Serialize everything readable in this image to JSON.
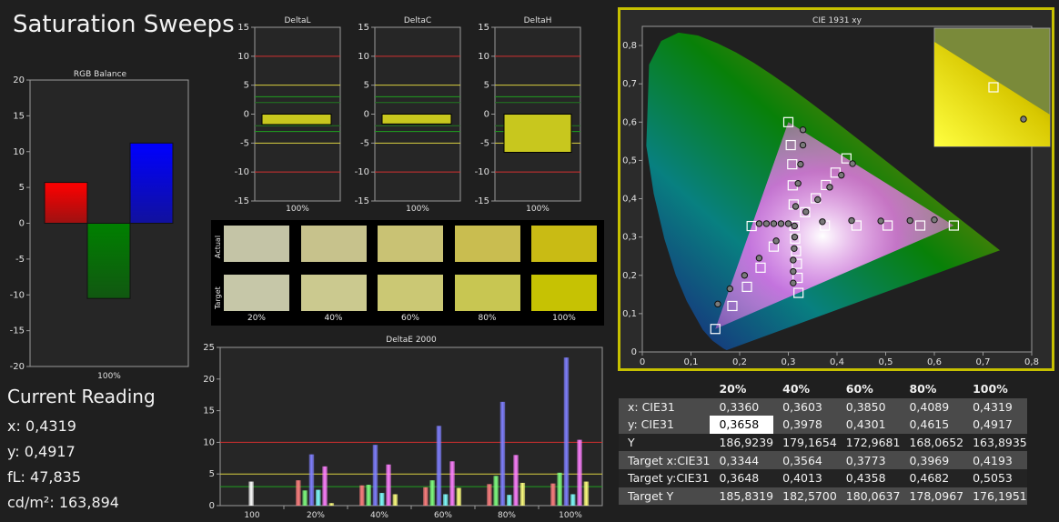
{
  "title": "Saturation Sweeps",
  "reading": {
    "heading": "Current Reading",
    "lines": [
      "x: 0,4319",
      "y: 0,4917",
      "fL: 47,835",
      "cd/m²: 163,894"
    ]
  },
  "swatches": {
    "actual_label": "Actual",
    "target_label": "Target",
    "labels": [
      "20%",
      "40%",
      "60%",
      "80%",
      "100%"
    ],
    "actual_colors": [
      "#c4c4a6",
      "#c7c28c",
      "#c9c274",
      "#c9bd50",
      "#c9bb14"
    ],
    "target_colors": [
      "#c6c7a8",
      "#cbc98f",
      "#cbc874",
      "#c8c652",
      "#c6c203"
    ]
  },
  "table": {
    "headers": [
      "",
      "20%",
      "40%",
      "60%",
      "80%",
      "100%"
    ],
    "rows": [
      {
        "label": "x: CIE31",
        "values": [
          "0,3360",
          "0,3603",
          "0,3850",
          "0,4089",
          "0,4319"
        ]
      },
      {
        "label": "y: CIE31",
        "values": [
          "0,3658",
          "0,3978",
          "0,4301",
          "0,4615",
          "0,4917"
        ]
      },
      {
        "label": "Y",
        "values": [
          "186,9239",
          "179,1654",
          "172,9681",
          "168,0652",
          "163,8935"
        ]
      },
      {
        "label": "Target x:CIE31",
        "values": [
          "0,3344",
          "0,3564",
          "0,3773",
          "0,3969",
          "0,4193"
        ]
      },
      {
        "label": "Target y:CIE31",
        "values": [
          "0,3648",
          "0,4013",
          "0,4358",
          "0,4682",
          "0,5053"
        ]
      },
      {
        "label": "Target Y",
        "values": [
          "185,8319",
          "182,5700",
          "180,0637",
          "178,0967",
          "176,1951"
        ]
      }
    ]
  },
  "chart_data": [
    {
      "type": "bar",
      "title": "RGB Balance",
      "categories": [
        "100%"
      ],
      "series": [
        {
          "color": "#ff0000",
          "values": [
            5.7
          ]
        },
        {
          "color": "#008000",
          "values": [
            -10.5
          ]
        },
        {
          "color": "#0000ff",
          "values": [
            11.2
          ]
        }
      ],
      "ylim": [
        -20,
        20
      ],
      "yticks": [
        "20",
        "15",
        "10",
        "5",
        "0",
        "-5",
        "-10",
        "-15",
        "-20"
      ],
      "grid": false
    },
    {
      "type": "bar",
      "title": "DeltaL",
      "categories": [
        "100%"
      ],
      "values": [
        -1.8
      ],
      "ylim": [
        -15,
        15
      ],
      "yticks": [
        "15",
        "10",
        "5",
        "0",
        "-5",
        "-10",
        "-15"
      ],
      "reference_lines": [
        10,
        -10,
        5,
        -5,
        3,
        -3,
        2,
        -2
      ]
    },
    {
      "type": "bar",
      "title": "DeltaC",
      "categories": [
        "100%"
      ],
      "values": [
        -1.7
      ],
      "ylim": [
        -15,
        15
      ],
      "yticks": [
        "15",
        "10",
        "5",
        "0",
        "-5",
        "-10",
        "-15"
      ],
      "reference_lines": [
        10,
        -10,
        5,
        -5,
        3,
        -3,
        2,
        -2
      ]
    },
    {
      "type": "bar",
      "title": "DeltaH",
      "categories": [
        "100%"
      ],
      "values": [
        -6.6
      ],
      "ylim": [
        -15,
        15
      ],
      "yticks": [
        "15",
        "10",
        "5",
        "0",
        "-5",
        "-10",
        "-15"
      ],
      "reference_lines": [
        10,
        -10,
        5,
        -5,
        3,
        -3,
        2,
        -2
      ]
    },
    {
      "type": "bar",
      "title": "DeltaE 2000",
      "categories": [
        "100",
        "20%",
        "40%",
        "60%",
        "80%",
        "100%"
      ],
      "series": [
        {
          "color": "#ff8080",
          "values": [
            0,
            4.0,
            3.2,
            2.9,
            3.4,
            3.5
          ]
        },
        {
          "color": "#80ff80",
          "values": [
            0,
            2.4,
            3.3,
            4.0,
            4.7,
            5.2
          ]
        },
        {
          "color": "#8080ff",
          "values": [
            0,
            8.1,
            9.6,
            12.6,
            16.4,
            23.4
          ]
        },
        {
          "color": "#80ffff",
          "values": [
            0,
            2.5,
            2.0,
            1.8,
            1.7,
            1.8
          ]
        },
        {
          "color": "#ff80ff",
          "values": [
            0,
            6.2,
            6.5,
            7.0,
            8.0,
            10.4
          ]
        },
        {
          "color": "#ffff80",
          "values": [
            0,
            0.4,
            1.8,
            2.8,
            3.6,
            3.8
          ]
        },
        {
          "color": "#ffffff",
          "values": [
            3.8,
            0,
            0,
            0,
            0,
            0
          ]
        }
      ],
      "ylim": [
        0,
        25
      ],
      "yticks": [
        "25",
        "20",
        "15",
        "10",
        "5",
        "0"
      ],
      "reference_lines": [
        10,
        5,
        3
      ]
    },
    {
      "type": "scatter",
      "title": "CIE 1931 xy",
      "xlim": [
        0,
        0.8
      ],
      "ylim": [
        0,
        0.85
      ],
      "xticks": [
        "0",
        "0,1",
        "0,2",
        "0,3",
        "0,4",
        "0,5",
        "0,6",
        "0,7",
        "0,8"
      ],
      "yticks": [
        "0",
        "0,1",
        "0,2",
        "0,3",
        "0,4",
        "0,5",
        "0,6",
        "0,7",
        "0,8"
      ],
      "gamut_triangle": [
        [
          0.64,
          0.33
        ],
        [
          0.3,
          0.6
        ],
        [
          0.15,
          0.06
        ]
      ],
      "series": [
        {
          "marker": "square",
          "points": [
            [
              0.3127,
              0.329
            ],
            [
              0.64,
              0.33
            ],
            [
              0.571,
              0.33
            ],
            [
              0.504,
              0.33
            ],
            [
              0.44,
              0.33
            ],
            [
              0.375,
              0.33
            ],
            [
              0.3,
              0.6
            ],
            [
              0.305,
              0.54
            ],
            [
              0.308,
              0.49
            ],
            [
              0.309,
              0.435
            ],
            [
              0.311,
              0.385
            ],
            [
              0.15,
              0.06
            ],
            [
              0.185,
              0.12
            ],
            [
              0.215,
              0.17
            ],
            [
              0.243,
              0.22
            ],
            [
              0.27,
              0.275
            ],
            [
              0.2246,
              0.3287
            ],
            [
              0.4193,
              0.5053
            ],
            [
              0.3969,
              0.4682
            ],
            [
              0.3773,
              0.4358
            ],
            [
              0.3564,
              0.4013
            ],
            [
              0.3344,
              0.3648
            ],
            [
              0.3209,
              0.1542
            ],
            [
              0.3191,
              0.1935
            ],
            [
              0.3177,
              0.2302
            ],
            [
              0.3158,
              0.2632
            ],
            [
              0.3141,
              0.2959
            ]
          ]
        },
        {
          "marker": "circle",
          "points": [
            [
              0.3127,
              0.329
            ],
            [
              0.6,
              0.345
            ],
            [
              0.55,
              0.343
            ],
            [
              0.49,
              0.342
            ],
            [
              0.43,
              0.343
            ],
            [
              0.37,
              0.34
            ],
            [
              0.33,
              0.58
            ],
            [
              0.33,
              0.54
            ],
            [
              0.325,
              0.49
            ],
            [
              0.32,
              0.44
            ],
            [
              0.315,
              0.38
            ],
            [
              0.155,
              0.125
            ],
            [
              0.18,
              0.165
            ],
            [
              0.21,
              0.2
            ],
            [
              0.24,
              0.245
            ],
            [
              0.275,
              0.29
            ],
            [
              0.24,
              0.335
            ],
            [
              0.255,
              0.335
            ],
            [
              0.27,
              0.335
            ],
            [
              0.285,
              0.335
            ],
            [
              0.3,
              0.335
            ],
            [
              0.4319,
              0.4917
            ],
            [
              0.4089,
              0.4615
            ],
            [
              0.385,
              0.4301
            ],
            [
              0.3603,
              0.3978
            ],
            [
              0.336,
              0.3658
            ],
            [
              0.31,
              0.18
            ],
            [
              0.31,
              0.21
            ],
            [
              0.31,
              0.24
            ],
            [
              0.312,
              0.27
            ],
            [
              0.313,
              0.3
            ]
          ]
        }
      ]
    }
  ]
}
